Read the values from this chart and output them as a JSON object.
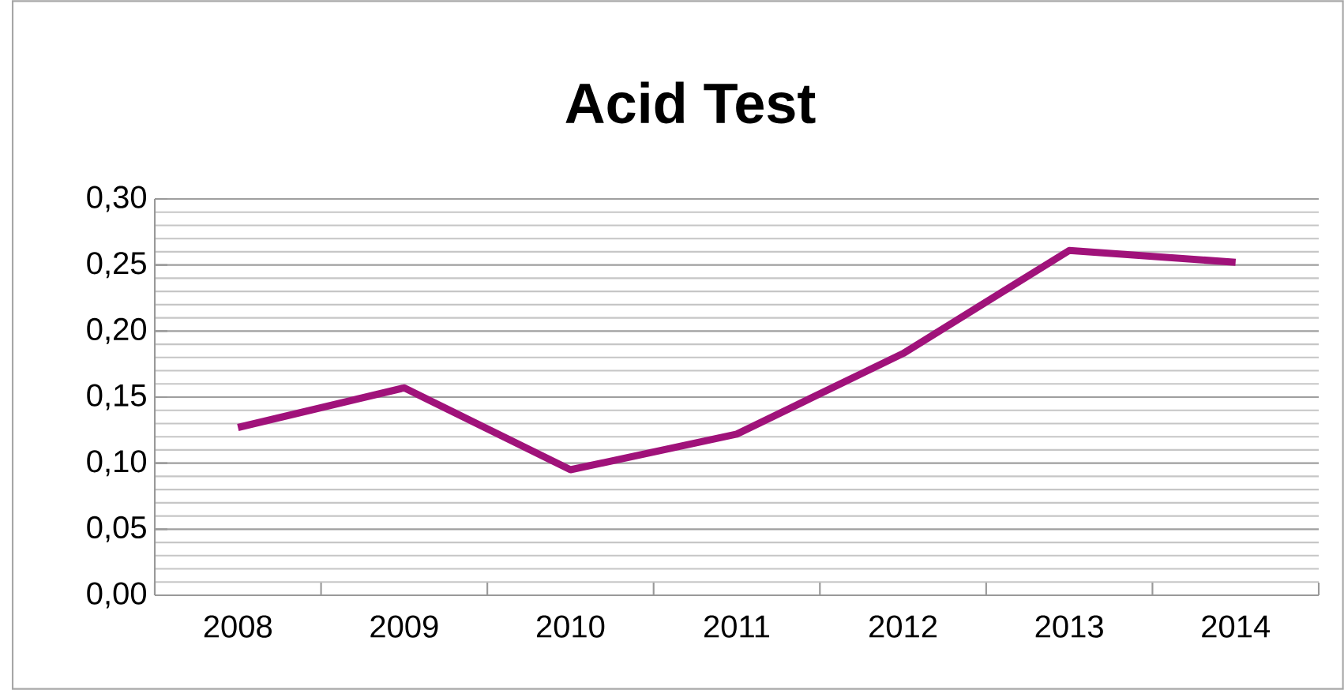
{
  "chart_data": {
    "type": "line",
    "title": "Acid Test",
    "categories": [
      "2008",
      "2009",
      "2010",
      "2011",
      "2012",
      "2013",
      "2014"
    ],
    "series": [
      {
        "color": "#a0127a",
        "values": [
          0.127,
          0.157,
          0.095,
          0.122,
          0.183,
          0.261,
          0.252
        ]
      }
    ],
    "ylim": [
      0,
      0.3
    ],
    "yticks": [
      {
        "value": 0,
        "label": "0,00"
      },
      {
        "value": 0.05,
        "label": "0,05"
      },
      {
        "value": 0.1,
        "label": "0,10"
      },
      {
        "value": 0.15,
        "label": "0,15"
      },
      {
        "value": 0.2,
        "label": "0,20"
      },
      {
        "value": 0.25,
        "label": "0,25"
      },
      {
        "value": 0.3,
        "label": "0,30"
      }
    ],
    "grid": "y",
    "marker": "none",
    "line_style": "solid"
  }
}
